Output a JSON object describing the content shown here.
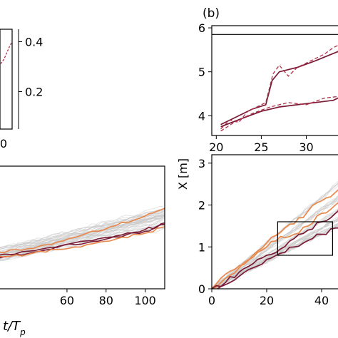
{
  "chart_data": [
    {
      "panel": "left",
      "type": "line",
      "title": "",
      "xlabel": "t/T_p",
      "ylabel": "",
      "xlim": [
        25,
        110
      ],
      "ylim": [
        0,
        3.2
      ],
      "xticks": [
        "60",
        "80",
        "100"
      ],
      "grid": false,
      "background_traces": "many thin light-grey realizations",
      "series": [
        {
          "color": "#e8874a",
          "x": [
            25,
            40,
            55,
            70,
            85,
            100,
            110
          ],
          "y": [
            0.95,
            1.05,
            1.22,
            1.45,
            1.65,
            1.9,
            2.1
          ]
        },
        {
          "color": "#7a1a34",
          "x": [
            25,
            40,
            55,
            70,
            85,
            100,
            110
          ],
          "y": [
            0.8,
            0.98,
            1.08,
            1.25,
            1.35,
            1.55,
            1.68
          ]
        },
        {
          "color": "#7a1a34",
          "x": [
            25,
            40,
            55,
            70,
            85,
            100,
            110
          ],
          "y": [
            0.88,
            0.92,
            1.1,
            1.2,
            1.38,
            1.5,
            1.72
          ]
        },
        {
          "color": "#e8874a",
          "x": [
            25,
            40,
            55,
            70,
            85,
            100,
            110
          ],
          "y": [
            0.85,
            0.9,
            1.02,
            1.15,
            1.3,
            1.45,
            1.62
          ]
        }
      ]
    },
    {
      "panel": "left-inset",
      "type": "line",
      "ylim": [
        0.05,
        0.45
      ],
      "yticks": [
        "0.2",
        "0.4"
      ],
      "xtick_partial": "0",
      "series": [
        {
          "color": "#b0304a",
          "style": "dashed",
          "x": [
            0,
            0.4,
            0.8,
            1.0
          ],
          "y": [
            0.3,
            0.33,
            0.38,
            0.4
          ]
        }
      ]
    },
    {
      "panel": "b",
      "type": "line",
      "panel_label": "(b)",
      "xlabel": "",
      "ylabel": "",
      "xlim": [
        19.5,
        34
      ],
      "ylim": [
        3.55,
        6.05
      ],
      "xticks": [
        "20",
        "25",
        "30"
      ],
      "yticks": [
        "4",
        "5",
        "6"
      ],
      "grid": false,
      "hline": 5.85,
      "series": [
        {
          "color": "#7a1a34",
          "style": "solid",
          "x": [
            20.5,
            22,
            24,
            25.5,
            26.2,
            27,
            29,
            31,
            34
          ],
          "y": [
            3.8,
            3.95,
            4.15,
            4.25,
            4.8,
            5.0,
            5.1,
            5.25,
            5.5
          ]
        },
        {
          "color": "#b0304a",
          "style": "dashed",
          "x": [
            20.5,
            21.5,
            22.5,
            23.5,
            24.5,
            25.5,
            26.3,
            27,
            28,
            29,
            30,
            31,
            32,
            33,
            34
          ],
          "y": [
            3.7,
            3.9,
            3.85,
            4.1,
            4.2,
            4.3,
            4.95,
            5.15,
            4.9,
            5.1,
            5.2,
            5.3,
            5.4,
            5.55,
            5.65
          ]
        },
        {
          "color": "#7a1a34",
          "style": "solid",
          "x": [
            20.5,
            23,
            25,
            27,
            29,
            31,
            33,
            34
          ],
          "y": [
            3.75,
            3.95,
            4.1,
            4.2,
            4.25,
            4.3,
            4.35,
            4.45
          ]
        },
        {
          "color": "#b0304a",
          "style": "dashed",
          "x": [
            20.5,
            22,
            24,
            26,
            28,
            30,
            32,
            34
          ],
          "y": [
            3.65,
            3.85,
            4.05,
            4.2,
            4.3,
            4.25,
            4.4,
            4.45
          ]
        }
      ]
    },
    {
      "panel": "right-lower",
      "type": "line",
      "xlabel": "",
      "ylabel": "X [m]",
      "xlim": [
        0,
        50
      ],
      "ylim": [
        0,
        3.2
      ],
      "xticks": [
        "0",
        "20",
        "40"
      ],
      "yticks": [
        "0",
        "1",
        "2",
        "3"
      ],
      "grid": false,
      "inset_box": {
        "x": [
          24,
          44
        ],
        "y": [
          0.8,
          1.6
        ]
      },
      "series": [
        {
          "color": "#e8874a",
          "x": [
            0,
            5,
            10,
            15,
            20,
            25,
            30,
            35,
            40,
            45,
            50
          ],
          "y": [
            0,
            0.35,
            0.55,
            0.8,
            1.1,
            1.35,
            1.55,
            1.85,
            2.1,
            2.3,
            2.5
          ]
        },
        {
          "color": "#e8874a",
          "x": [
            0,
            5,
            10,
            15,
            20,
            25,
            30,
            35,
            40,
            45,
            50
          ],
          "y": [
            0,
            0.25,
            0.5,
            0.75,
            1.0,
            1.25,
            1.3,
            1.5,
            1.8,
            2.0,
            2.2
          ]
        },
        {
          "color": "#7a1a34",
          "x": [
            0,
            5,
            10,
            15,
            20,
            25,
            30,
            35,
            40,
            45,
            50
          ],
          "y": [
            0,
            0.15,
            0.4,
            0.6,
            0.8,
            0.95,
            1.2,
            1.4,
            1.6,
            1.8,
            1.95
          ]
        },
        {
          "color": "#7a1a34",
          "x": [
            0,
            5,
            10,
            15,
            20,
            25,
            30,
            35,
            40,
            45,
            50
          ],
          "y": [
            0,
            0.1,
            0.3,
            0.5,
            0.7,
            0.85,
            1.0,
            1.15,
            1.3,
            1.45,
            1.6
          ]
        }
      ]
    }
  ]
}
